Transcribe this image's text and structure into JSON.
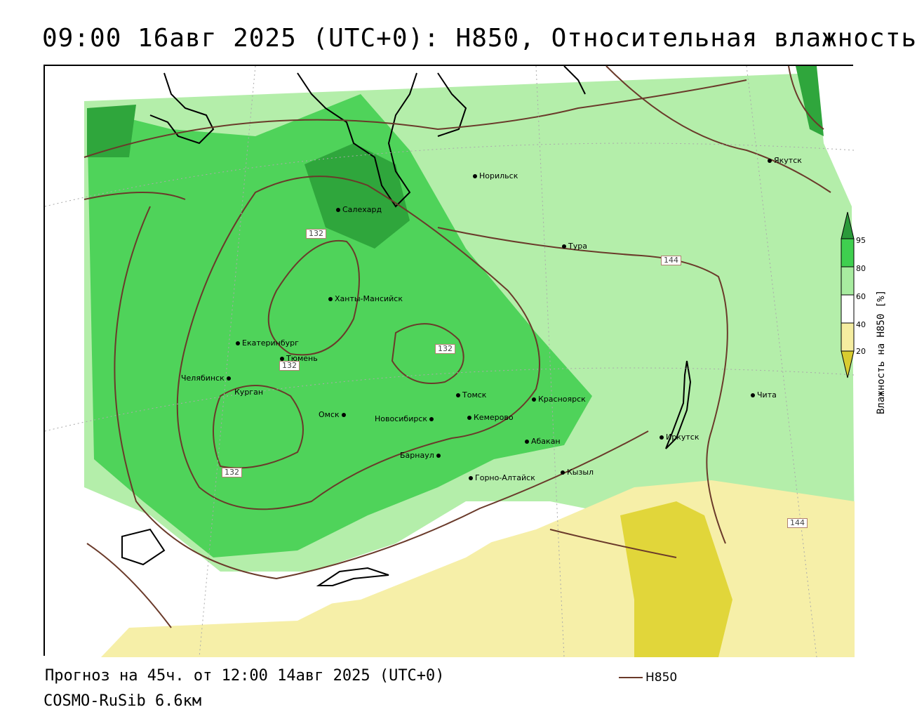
{
  "header": {
    "title": "09:00 16авг 2025 (UTC+0): H850, Относительная влажность"
  },
  "map": {
    "cities": [
      {
        "name": "Якутск"
      },
      {
        "name": "Норильск"
      },
      {
        "name": "Салехард"
      },
      {
        "name": "Тура"
      },
      {
        "name": "Ханты-Мансийск"
      },
      {
        "name": "Екатеринбург"
      },
      {
        "name": "Тюмень"
      },
      {
        "name": "Челябинск"
      },
      {
        "name": "Курган"
      },
      {
        "name": "Омск"
      },
      {
        "name": "Новосибирск"
      },
      {
        "name": "Томск"
      },
      {
        "name": "Кемерово"
      },
      {
        "name": "Красноярск"
      },
      {
        "name": "Абакан"
      },
      {
        "name": "Барнаул"
      },
      {
        "name": "Горно-Алтайск"
      },
      {
        "name": "Кызыл"
      },
      {
        "name": "Иркутск"
      },
      {
        "name": "Чита"
      }
    ],
    "contour_labels": [
      "132",
      "132",
      "132",
      "132",
      "144",
      "144"
    ]
  },
  "legend": {
    "title": "Влажность на H850 [%]",
    "ticks": [
      "95",
      "80",
      "60",
      "40",
      "20"
    ],
    "colors": {
      "gt95": "#2a9a3a",
      "80_95": "#3fcf4f",
      "60_80": "#a8eca0",
      "40_60": "#ffffff",
      "20_40": "#f5eda0",
      "lt20": "#d8cc30"
    }
  },
  "footer": {
    "forecast": "Прогноз на 45ч. от 12:00 14авг 2025 (UTC+0)",
    "model": "COSMO-RuSib 6.6км",
    "line_legend": "H850"
  },
  "colors": {
    "contour": "#6a3a2a",
    "coast": "#000000"
  }
}
